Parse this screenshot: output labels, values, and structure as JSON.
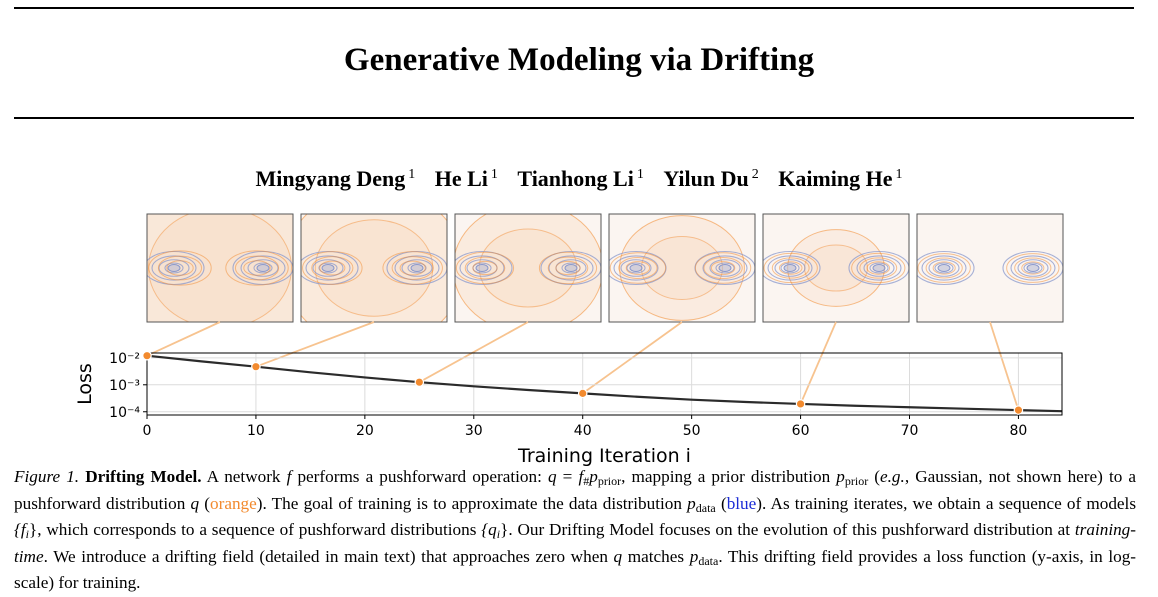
{
  "title": "Generative Modeling via Drifting",
  "authors": [
    {
      "name": "Mingyang Deng",
      "affil": "1"
    },
    {
      "name": "He Li",
      "affil": "1"
    },
    {
      "name": "Tianhong Li",
      "affil": "1"
    },
    {
      "name": "Yilun Du",
      "affil": "2"
    },
    {
      "name": "Kaiming He",
      "affil": "1"
    }
  ],
  "colors": {
    "prior_pushforward": "#f28a2e",
    "data": "#8a98cc",
    "curve": "#2b2b2b",
    "panel_bg": "#fbf5f1"
  },
  "chart_data": {
    "type": "line",
    "xlabel": "Training Iteration i",
    "ylabel": "Loss",
    "xlim": [
      0,
      84
    ],
    "ylim": [
      7.58e-05,
      0.0151
    ],
    "yscale": "log",
    "x_ticks": [
      "0",
      "10",
      "20",
      "30",
      "40",
      "50",
      "60",
      "70",
      "80"
    ],
    "y_ticks": [
      "10⁻²",
      "10⁻³",
      "10⁻⁴"
    ],
    "grid": true,
    "series": [
      {
        "x": [
          0,
          5,
          10,
          15,
          20,
          25,
          30,
          35,
          40,
          45,
          50,
          55,
          60,
          65,
          70,
          75,
          80,
          84
        ],
        "y": [
          0.012,
          0.0074,
          0.0047,
          0.0029,
          0.00187,
          0.00125,
          0.00088,
          0.00064,
          0.00048,
          0.00036,
          0.00028,
          0.00023,
          0.000195,
          0.000167,
          0.000147,
          0.00013,
          0.000115,
          0.000105
        ]
      }
    ],
    "highlighted_points": [
      {
        "x": 0,
        "y": 0.012
      },
      {
        "x": 10,
        "y": 0.0047
      },
      {
        "x": 25,
        "y": 0.00125
      },
      {
        "x": 40,
        "y": 0.00048
      },
      {
        "x": 60,
        "y": 0.000195
      },
      {
        "x": 80,
        "y": 0.000115
      }
    ]
  },
  "panels": [
    {
      "orange_spread": 1.0
    },
    {
      "orange_spread": 0.72
    },
    {
      "orange_spread": 0.5
    },
    {
      "orange_spread": 0.32
    },
    {
      "orange_spread": 0.12
    },
    {
      "orange_spread": 0.03
    }
  ],
  "caption": {
    "fig_label": "Figure 1.",
    "fig_title": "Drifting Model.",
    "t1": "A network",
    "f": "f",
    "t2": "performs a pushforward operation:",
    "q": "q",
    "eq": "=",
    "fhash": "f",
    "hash": "#",
    "p": "p",
    "prior": "prior",
    "t3": ", mapping a prior distribution",
    "t4": "(",
    "eg": "e.g.",
    "t5": ", Gaussian, not shown here) to a pushforward distribution",
    "t6": "(",
    "orange": "orange",
    "t7": "). The goal of training is to approximate the data distribution",
    "data": "data",
    "t8": "(",
    "blue": "blue",
    "t9": "). As training iterates, we obtain a sequence of models",
    "fi": "{f",
    "i": "i",
    "close": "}",
    "t10": ", which corresponds to a sequence of pushforward distributions",
    "qi": "{q",
    "t11": ". Our Drifting Model focuses on the evolution of this pushforward distribution at",
    "tt": "training-time",
    "t12": ". We introduce a drifting field (detailed in main text) that approaches zero when",
    "t13": "matches",
    "t14": ". This drifting field provides a loss function (y-axis, in log-scale) for training."
  }
}
